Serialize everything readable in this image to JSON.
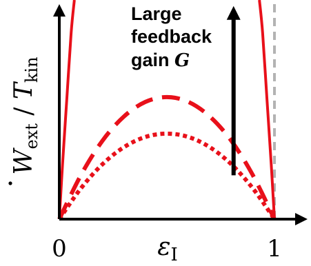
{
  "chart_data": {
    "type": "line",
    "xlabel": "ε_I",
    "ylabel": "Ẇ_ext / T_kin",
    "xlim": [
      0,
      1.1
    ],
    "ylim": [
      0,
      1.0
    ],
    "x_ticks": [
      "0",
      "1"
    ],
    "grid": false,
    "series": [
      {
        "style": "dashed",
        "color": "#e8101a",
        "x": [
          0,
          0.1,
          0.2,
          0.3,
          0.4,
          0.5,
          0.6,
          0.7,
          0.8,
          0.9,
          1.0
        ],
        "y": [
          0,
          0.2,
          0.357,
          0.468,
          0.535,
          0.557,
          0.535,
          0.468,
          0.357,
          0.2,
          0
        ]
      },
      {
        "style": "dotted",
        "color": "#e8101a",
        "x": [
          0,
          0.1,
          0.2,
          0.3,
          0.4,
          0.5,
          0.6,
          0.7,
          0.8,
          0.9,
          1.0
        ],
        "y": [
          0,
          0.14,
          0.25,
          0.328,
          0.375,
          0.39,
          0.375,
          0.328,
          0.25,
          0.14,
          0
        ]
      },
      {
        "style": "solid",
        "color": "#e8101a",
        "segments": [
          {
            "x": [
              0,
              0.015,
              0.035,
              0.055,
              0.07
            ],
            "y": [
              0,
              0.25,
              0.55,
              0.85,
              1.0
            ]
          },
          {
            "x": [
              0.93,
              0.945,
              0.965,
              0.985,
              1.0
            ],
            "y": [
              1.0,
              0.85,
              0.55,
              0.25,
              0
            ]
          }
        ]
      }
    ],
    "reference_line": {
      "x": 1.0,
      "style": "dashed",
      "color": "#b3b3b3"
    },
    "annotation": {
      "lines": [
        "Large",
        "feedback",
        "gain"
      ],
      "symbol": "G",
      "arrow": {
        "x": 0.81,
        "y_from": 0.2,
        "y_to": 0.96
      }
    }
  }
}
